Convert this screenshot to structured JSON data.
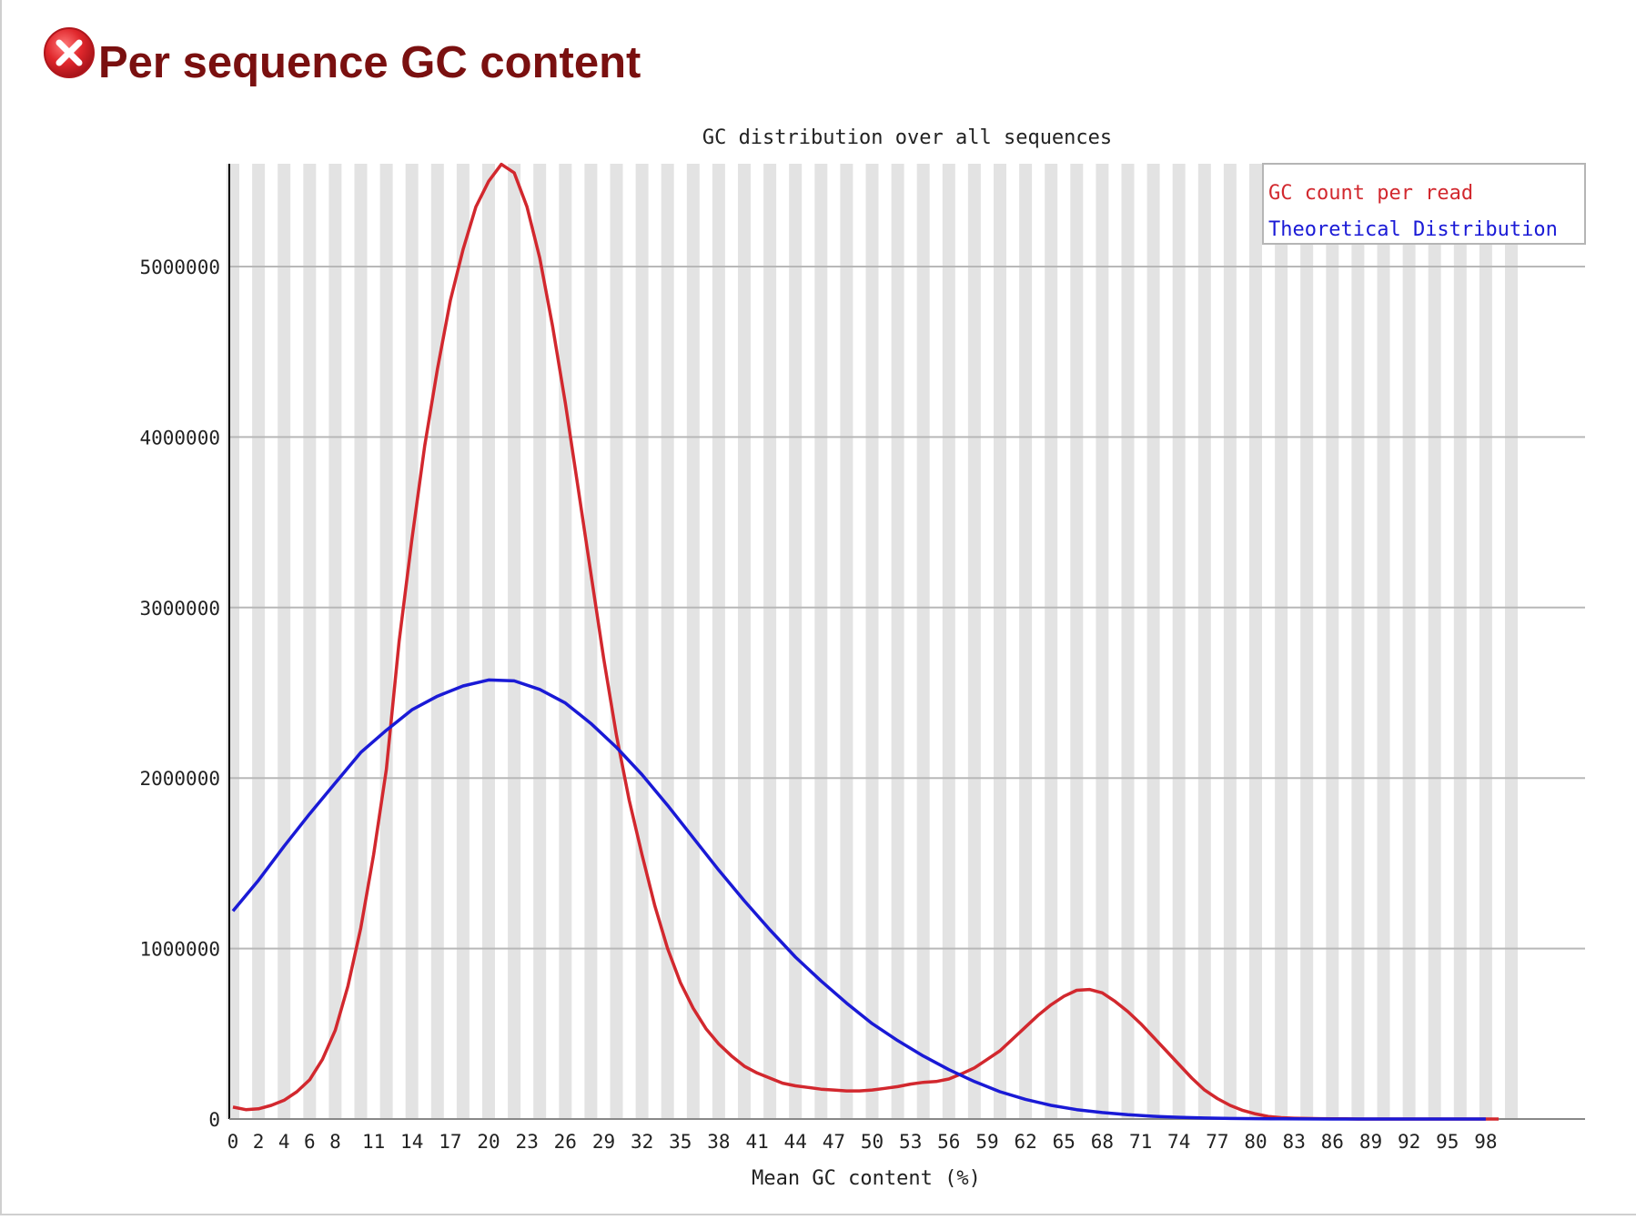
{
  "page": {
    "title": "Per sequence GC content",
    "status_icon": "error-x-icon",
    "status_color": "#d9262b",
    "title_color": "#7a1010"
  },
  "chart_data": {
    "type": "line",
    "title": "GC distribution over all sequences",
    "xlabel": "Mean GC content (%)",
    "ylabel": "",
    "xlim": [
      0,
      100
    ],
    "ylim": [
      0,
      5600000
    ],
    "yticks": [
      0,
      1000000,
      2000000,
      3000000,
      4000000,
      5000000
    ],
    "ytick_labels": [
      "0",
      "1000000",
      "2000000",
      "3000000",
      "4000000",
      "5000000"
    ],
    "xtick_labels": [
      "0",
      "2",
      "4",
      "6",
      "8",
      "11",
      "14",
      "17",
      "20",
      "23",
      "26",
      "29",
      "32",
      "35",
      "38",
      "41",
      "44",
      "47",
      "50",
      "53",
      "56",
      "59",
      "62",
      "65",
      "68",
      "71",
      "74",
      "77",
      "80",
      "83",
      "86",
      "89",
      "92",
      "95",
      "98"
    ],
    "grid": "horizontal lines with alternating vertical bands",
    "legend_position": "top-right",
    "series": [
      {
        "name": "GC count per read",
        "color": "#d2282e",
        "points": [
          [
            0,
            70000
          ],
          [
            1,
            55000
          ],
          [
            2,
            60000
          ],
          [
            3,
            80000
          ],
          [
            4,
            110000
          ],
          [
            5,
            160000
          ],
          [
            6,
            230000
          ],
          [
            7,
            350000
          ],
          [
            8,
            520000
          ],
          [
            9,
            780000
          ],
          [
            10,
            1120000
          ],
          [
            11,
            1550000
          ],
          [
            12,
            2050000
          ],
          [
            13,
            2800000
          ],
          [
            14,
            3400000
          ],
          [
            15,
            3950000
          ],
          [
            16,
            4400000
          ],
          [
            17,
            4800000
          ],
          [
            18,
            5100000
          ],
          [
            19,
            5350000
          ],
          [
            20,
            5500000
          ],
          [
            21,
            5600000
          ],
          [
            22,
            5550000
          ],
          [
            23,
            5350000
          ],
          [
            24,
            5050000
          ],
          [
            25,
            4650000
          ],
          [
            26,
            4200000
          ],
          [
            27,
            3700000
          ],
          [
            28,
            3200000
          ],
          [
            29,
            2700000
          ],
          [
            30,
            2250000
          ],
          [
            31,
            1870000
          ],
          [
            32,
            1550000
          ],
          [
            33,
            1250000
          ],
          [
            34,
            1000000
          ],
          [
            35,
            800000
          ],
          [
            36,
            650000
          ],
          [
            37,
            530000
          ],
          [
            38,
            440000
          ],
          [
            39,
            370000
          ],
          [
            40,
            310000
          ],
          [
            41,
            270000
          ],
          [
            42,
            240000
          ],
          [
            43,
            210000
          ],
          [
            44,
            195000
          ],
          [
            45,
            185000
          ],
          [
            46,
            175000
          ],
          [
            47,
            170000
          ],
          [
            48,
            165000
          ],
          [
            49,
            165000
          ],
          [
            50,
            170000
          ],
          [
            51,
            180000
          ],
          [
            52,
            190000
          ],
          [
            53,
            205000
          ],
          [
            54,
            215000
          ],
          [
            55,
            220000
          ],
          [
            56,
            235000
          ],
          [
            57,
            265000
          ],
          [
            58,
            300000
          ],
          [
            59,
            350000
          ],
          [
            60,
            400000
          ],
          [
            61,
            470000
          ],
          [
            62,
            540000
          ],
          [
            63,
            610000
          ],
          [
            64,
            670000
          ],
          [
            65,
            720000
          ],
          [
            66,
            755000
          ],
          [
            67,
            760000
          ],
          [
            68,
            740000
          ],
          [
            69,
            690000
          ],
          [
            70,
            630000
          ],
          [
            71,
            560000
          ],
          [
            72,
            480000
          ],
          [
            73,
            400000
          ],
          [
            74,
            320000
          ],
          [
            75,
            240000
          ],
          [
            76,
            170000
          ],
          [
            77,
            120000
          ],
          [
            78,
            80000
          ],
          [
            79,
            50000
          ],
          [
            80,
            30000
          ],
          [
            81,
            15000
          ],
          [
            82,
            8000
          ],
          [
            83,
            5000
          ],
          [
            84,
            3000
          ],
          [
            85,
            2000
          ],
          [
            86,
            1000
          ],
          [
            87,
            1000
          ],
          [
            88,
            0
          ],
          [
            89,
            0
          ],
          [
            90,
            0
          ],
          [
            91,
            0
          ],
          [
            92,
            0
          ],
          [
            93,
            0
          ],
          [
            94,
            0
          ],
          [
            95,
            0
          ],
          [
            96,
            0
          ],
          [
            97,
            0
          ],
          [
            98,
            0
          ],
          [
            99,
            0
          ],
          [
            100,
            0
          ]
        ]
      },
      {
        "name": "Theoretical Distribution",
        "color": "#1a1ad6",
        "points": [
          [
            0,
            1220000
          ],
          [
            2,
            1400000
          ],
          [
            4,
            1600000
          ],
          [
            6,
            1790000
          ],
          [
            8,
            1970000
          ],
          [
            10,
            2150000
          ],
          [
            12,
            2280000
          ],
          [
            14,
            2400000
          ],
          [
            16,
            2480000
          ],
          [
            18,
            2540000
          ],
          [
            20,
            2575000
          ],
          [
            22,
            2570000
          ],
          [
            24,
            2520000
          ],
          [
            26,
            2440000
          ],
          [
            28,
            2320000
          ],
          [
            30,
            2180000
          ],
          [
            32,
            2020000
          ],
          [
            34,
            1840000
          ],
          [
            36,
            1650000
          ],
          [
            38,
            1460000
          ],
          [
            40,
            1280000
          ],
          [
            42,
            1110000
          ],
          [
            44,
            950000
          ],
          [
            46,
            810000
          ],
          [
            48,
            680000
          ],
          [
            50,
            560000
          ],
          [
            52,
            460000
          ],
          [
            54,
            370000
          ],
          [
            56,
            290000
          ],
          [
            58,
            220000
          ],
          [
            60,
            160000
          ],
          [
            62,
            115000
          ],
          [
            64,
            80000
          ],
          [
            66,
            55000
          ],
          [
            68,
            38000
          ],
          [
            70,
            25000
          ],
          [
            72,
            16000
          ],
          [
            74,
            10000
          ],
          [
            76,
            6000
          ],
          [
            78,
            3000
          ],
          [
            80,
            2000
          ],
          [
            82,
            1000
          ],
          [
            84,
            500
          ],
          [
            86,
            0
          ],
          [
            88,
            0
          ],
          [
            90,
            0
          ],
          [
            92,
            0
          ],
          [
            94,
            0
          ],
          [
            96,
            0
          ],
          [
            98,
            0
          ],
          [
            100,
            0
          ]
        ]
      }
    ]
  }
}
